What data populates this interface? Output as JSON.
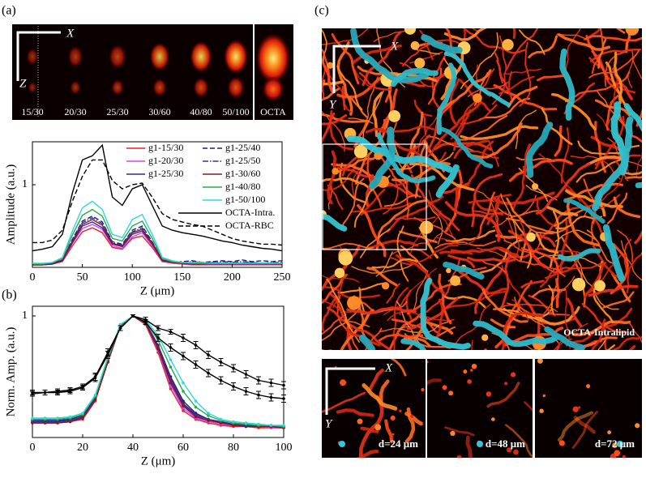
{
  "panel_labels": [
    "(a)",
    "(b)",
    "(c)"
  ],
  "panel_a_image": {
    "axis_x": "X",
    "axis_z": "Z",
    "labels": [
      "15/30",
      "20/30",
      "25/30",
      "30/60",
      "40/80",
      "50/100",
      "OCTA"
    ]
  },
  "panel_c_image": {
    "axis_x": "X",
    "axis_y": "Y",
    "caption": "OCTA-Intralipid"
  },
  "depth_images": {
    "axis_x": "X",
    "axis_y": "Y",
    "labels": [
      "d=24 μm",
      "d=48 μm",
      "d=72 μm"
    ]
  },
  "chart_data": [
    {
      "type": "line",
      "xlabel": "Z (μm)",
      "ylabel": "Amplitude (a.u.)",
      "xlim": [
        0,
        250
      ],
      "xticks": [
        0,
        50,
        100,
        150,
        200,
        250
      ],
      "ylim": [
        0,
        1.52
      ],
      "yticks": [
        1
      ],
      "grid": false,
      "legend": "upper right",
      "x": [
        0,
        10,
        20,
        30,
        40,
        50,
        60,
        70,
        80,
        90,
        100,
        110,
        120,
        130,
        140,
        150,
        160,
        170,
        180,
        190,
        200,
        210,
        220,
        230,
        240,
        250
      ],
      "series": [
        {
          "name": "g1-15/30",
          "color": "#e8202a",
          "style": "solid",
          "values": [
            0.03,
            0.03,
            0.04,
            0.07,
            0.26,
            0.43,
            0.48,
            0.42,
            0.24,
            0.22,
            0.35,
            0.38,
            0.24,
            0.07,
            0.05,
            0.04,
            0.03,
            0.03,
            0.03,
            0.03,
            0.03,
            0.03,
            0.03,
            0.03,
            0.03,
            0.03
          ]
        },
        {
          "name": "g1-20/30",
          "color": "#e040e0",
          "style": "solid",
          "values": [
            0.03,
            0.03,
            0.04,
            0.08,
            0.29,
            0.47,
            0.52,
            0.46,
            0.26,
            0.23,
            0.37,
            0.42,
            0.26,
            0.08,
            0.05,
            0.04,
            0.04,
            0.04,
            0.03,
            0.03,
            0.03,
            0.03,
            0.03,
            0.03,
            0.03,
            0.03
          ]
        },
        {
          "name": "g1-25/30",
          "color": "#2a2aa8",
          "style": "solid",
          "values": [
            0.03,
            0.03,
            0.04,
            0.08,
            0.3,
            0.5,
            0.55,
            0.48,
            0.28,
            0.25,
            0.4,
            0.44,
            0.28,
            0.08,
            0.06,
            0.05,
            0.05,
            0.04,
            0.06,
            0.05,
            0.04,
            0.05,
            0.06,
            0.05,
            0.04,
            0.05
          ]
        },
        {
          "name": "g1-25/40",
          "color": "#1a1a8a",
          "style": "dashed",
          "values": [
            0.04,
            0.04,
            0.05,
            0.09,
            0.34,
            0.56,
            0.62,
            0.55,
            0.31,
            0.28,
            0.45,
            0.5,
            0.31,
            0.09,
            0.06,
            0.07,
            0.08,
            0.06,
            0.07,
            0.08,
            0.07,
            0.09,
            0.07,
            0.08,
            0.07,
            0.08
          ]
        },
        {
          "name": "g1-25/50",
          "color": "#3030a0",
          "style": "dashdot",
          "values": [
            0.04,
            0.04,
            0.05,
            0.09,
            0.33,
            0.54,
            0.6,
            0.53,
            0.3,
            0.27,
            0.43,
            0.48,
            0.3,
            0.09,
            0.06,
            0.06,
            0.07,
            0.06,
            0.05,
            0.07,
            0.06,
            0.07,
            0.06,
            0.05,
            0.06,
            0.06
          ]
        },
        {
          "name": "g1-30/60",
          "color": "#8b1a1a",
          "style": "solid",
          "values": [
            0.03,
            0.03,
            0.05,
            0.09,
            0.32,
            0.52,
            0.58,
            0.51,
            0.29,
            0.26,
            0.42,
            0.46,
            0.29,
            0.09,
            0.06,
            0.05,
            0.04,
            0.04,
            0.04,
            0.04,
            0.04,
            0.04,
            0.04,
            0.04,
            0.04,
            0.04
          ]
        },
        {
          "name": "g1-40/80",
          "color": "#22b04a",
          "style": "solid",
          "values": [
            0.04,
            0.04,
            0.06,
            0.11,
            0.39,
            0.63,
            0.7,
            0.62,
            0.35,
            0.32,
            0.5,
            0.56,
            0.35,
            0.11,
            0.07,
            0.06,
            0.05,
            0.05,
            0.05,
            0.05,
            0.05,
            0.05,
            0.05,
            0.05,
            0.05,
            0.05
          ]
        },
        {
          "name": "g1-50/100",
          "color": "#30d8e0",
          "style": "solid",
          "values": [
            0.05,
            0.05,
            0.06,
            0.12,
            0.44,
            0.72,
            0.8,
            0.7,
            0.4,
            0.36,
            0.58,
            0.64,
            0.4,
            0.12,
            0.08,
            0.06,
            0.06,
            0.06,
            0.05,
            0.05,
            0.05,
            0.05,
            0.05,
            0.05,
            0.05,
            0.05
          ]
        },
        {
          "name": "OCTA-Intra.",
          "color": "#000000",
          "style": "solid",
          "values": [
            0.2,
            0.22,
            0.25,
            0.4,
            0.9,
            1.3,
            1.35,
            1.48,
            0.85,
            0.75,
            0.95,
            1.0,
            0.75,
            0.5,
            0.45,
            0.42,
            0.4,
            0.38,
            0.35,
            0.32,
            0.3,
            0.27,
            0.25,
            0.23,
            0.22,
            0.2
          ]
        },
        {
          "name": "OCTA-RBC",
          "color": "#000000",
          "style": "dashed",
          "values": [
            0.3,
            0.3,
            0.33,
            0.45,
            0.8,
            1.1,
            1.3,
            1.3,
            1.05,
            0.95,
            1.0,
            1.02,
            0.85,
            0.65,
            0.58,
            0.55,
            0.52,
            0.5,
            0.45,
            0.4,
            0.35,
            0.32,
            0.3,
            0.28,
            0.28,
            0.27
          ]
        }
      ]
    },
    {
      "type": "line",
      "xlabel": "Z (μm)",
      "ylabel": "Norm. Amp. (a.u.)",
      "xlim": [
        0,
        100
      ],
      "xticks": [
        0,
        20,
        40,
        60,
        80,
        100
      ],
      "ylim": [
        0,
        1.08
      ],
      "yticks": [
        1
      ],
      "grid": false,
      "markers": true,
      "x": [
        0,
        5,
        10,
        15,
        20,
        25,
        30,
        35,
        40,
        45,
        50,
        55,
        60,
        65,
        70,
        75,
        80,
        85,
        90,
        95,
        100
      ],
      "series": [
        {
          "color": "#e8202a",
          "style": "solid",
          "values": [
            0.12,
            0.12,
            0.12,
            0.13,
            0.15,
            0.3,
            0.62,
            0.92,
            1.0,
            0.93,
            0.7,
            0.4,
            0.22,
            0.15,
            0.12,
            0.1,
            0.09,
            0.09,
            0.08,
            0.08,
            0.08
          ]
        },
        {
          "color": "#e040e0",
          "style": "solid",
          "values": [
            0.13,
            0.13,
            0.13,
            0.14,
            0.16,
            0.32,
            0.63,
            0.92,
            1.0,
            0.94,
            0.72,
            0.43,
            0.24,
            0.16,
            0.13,
            0.11,
            0.1,
            0.09,
            0.09,
            0.08,
            0.08
          ]
        },
        {
          "color": "#2a2aa8",
          "style": "solid",
          "values": [
            0.12,
            0.12,
            0.12,
            0.13,
            0.16,
            0.31,
            0.62,
            0.92,
            1.0,
            0.94,
            0.73,
            0.45,
            0.26,
            0.17,
            0.14,
            0.12,
            0.1,
            0.09,
            0.09,
            0.09,
            0.08
          ]
        },
        {
          "color": "#1a1a8a",
          "style": "solid",
          "values": [
            0.14,
            0.14,
            0.14,
            0.15,
            0.18,
            0.33,
            0.64,
            0.92,
            1.0,
            0.95,
            0.76,
            0.5,
            0.3,
            0.2,
            0.15,
            0.13,
            0.11,
            0.1,
            0.1,
            0.09,
            0.09
          ]
        },
        {
          "color": "#3030a0",
          "style": "solid",
          "values": [
            0.13,
            0.13,
            0.13,
            0.14,
            0.17,
            0.32,
            0.63,
            0.92,
            1.0,
            0.95,
            0.75,
            0.48,
            0.28,
            0.19,
            0.15,
            0.12,
            0.11,
            0.1,
            0.09,
            0.09,
            0.09
          ]
        },
        {
          "color": "#8b1a1a",
          "style": "solid",
          "values": [
            0.12,
            0.12,
            0.12,
            0.13,
            0.16,
            0.31,
            0.62,
            0.92,
            1.0,
            0.94,
            0.74,
            0.47,
            0.27,
            0.18,
            0.14,
            0.12,
            0.1,
            0.1,
            0.09,
            0.09,
            0.08
          ]
        },
        {
          "color": "#22b04a",
          "style": "solid",
          "values": [
            0.15,
            0.15,
            0.15,
            0.16,
            0.19,
            0.34,
            0.65,
            0.93,
            1.0,
            0.96,
            0.8,
            0.58,
            0.38,
            0.25,
            0.18,
            0.14,
            0.12,
            0.11,
            0.1,
            0.1,
            0.09
          ]
        },
        {
          "color": "#30d8e0",
          "style": "solid",
          "values": [
            0.16,
            0.16,
            0.16,
            0.17,
            0.2,
            0.35,
            0.66,
            0.93,
            1.0,
            0.97,
            0.84,
            0.64,
            0.45,
            0.3,
            0.2,
            0.15,
            0.13,
            0.12,
            0.11,
            0.1,
            0.1
          ]
        },
        {
          "color": "#000000",
          "style": "solid",
          "values": [
            0.36,
            0.37,
            0.37,
            0.38,
            0.41,
            0.49,
            0.68,
            0.9,
            1.0,
            0.95,
            0.82,
            0.74,
            0.67,
            0.6,
            0.53,
            0.47,
            0.42,
            0.38,
            0.35,
            0.33,
            0.32
          ],
          "errors": [
            0.02,
            0.02,
            0.02,
            0.02,
            0.02,
            0.03,
            0.03,
            0.02,
            0.01,
            0.02,
            0.03,
            0.03,
            0.03,
            0.03,
            0.03,
            0.03,
            0.03,
            0.03,
            0.03,
            0.03,
            0.03
          ]
        },
        {
          "color": "#000000",
          "style": "solid",
          "values": [
            0.37,
            0.37,
            0.38,
            0.39,
            0.42,
            0.5,
            0.7,
            0.9,
            1.0,
            0.97,
            0.9,
            0.87,
            0.82,
            0.76,
            0.68,
            0.62,
            0.57,
            0.52,
            0.47,
            0.45,
            0.43
          ],
          "errors": [
            0.02,
            0.02,
            0.02,
            0.02,
            0.02,
            0.03,
            0.03,
            0.02,
            0.01,
            0.02,
            0.02,
            0.02,
            0.03,
            0.03,
            0.03,
            0.03,
            0.03,
            0.03,
            0.03,
            0.03,
            0.03
          ]
        }
      ]
    }
  ]
}
